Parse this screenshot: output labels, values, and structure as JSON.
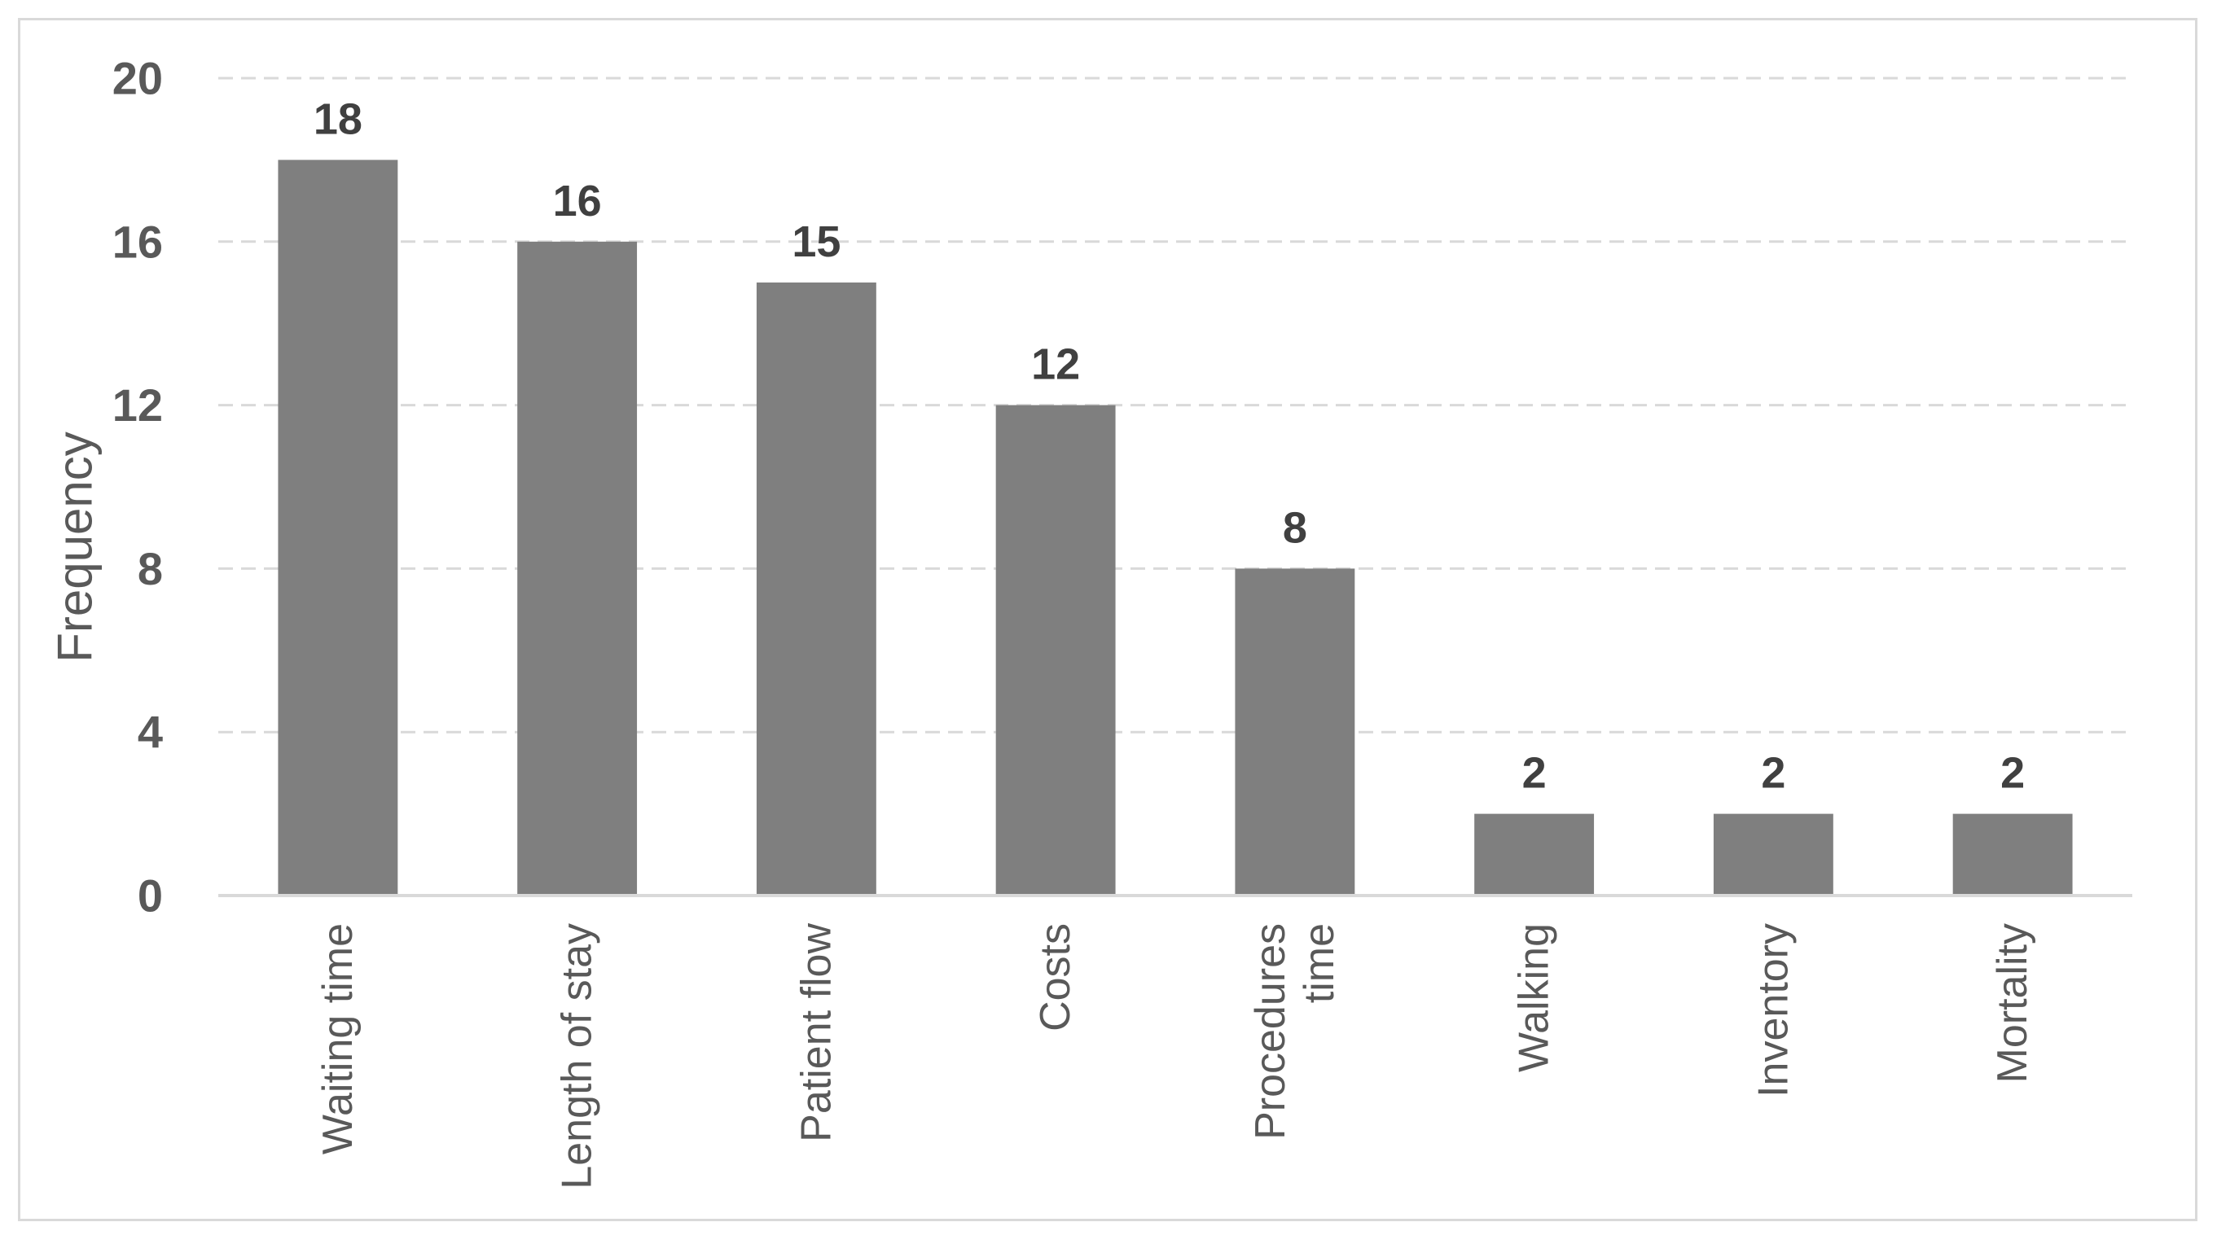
{
  "chart_data": {
    "type": "bar",
    "categories": [
      "Waiting time",
      "Length of stay",
      "Patient flow",
      "Costs",
      "Procedures time",
      "Walking",
      "Inventory",
      "Mortality"
    ],
    "category_lines": [
      [
        "Waiting time"
      ],
      [
        "Length of stay"
      ],
      [
        "Patient flow"
      ],
      [
        "Costs"
      ],
      [
        "Procedures",
        "time"
      ],
      [
        "Walking"
      ],
      [
        "Inventory"
      ],
      [
        "Mortality"
      ]
    ],
    "values": [
      18,
      16,
      15,
      12,
      8,
      2,
      2,
      2
    ],
    "data_labels": [
      "18",
      "16",
      "15",
      "12",
      "8",
      "2",
      "2",
      "2"
    ],
    "ylabel": "Frequency",
    "ylim": [
      0,
      20
    ],
    "yticks": [
      0,
      4,
      8,
      12,
      16,
      20
    ],
    "ytick_labels": [
      "0",
      "4",
      "8",
      "12",
      "16",
      "20"
    ],
    "grid": true,
    "legend": "none",
    "bar_color": "#7f7f7f",
    "grid_color": "#d9d9d9"
  }
}
